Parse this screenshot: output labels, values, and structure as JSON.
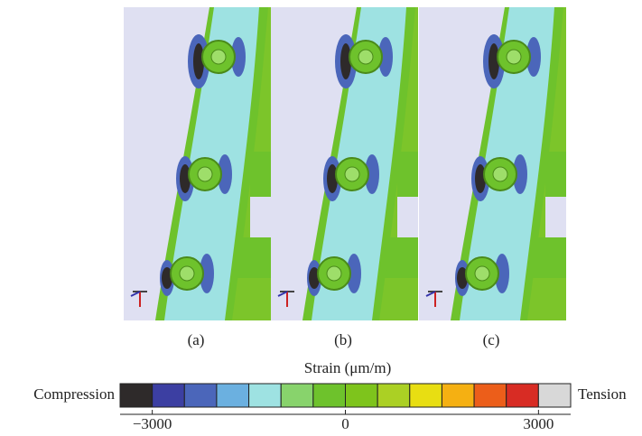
{
  "panels": [
    {
      "label": "(a)"
    },
    {
      "label": "(b)"
    },
    {
      "label": "(c)"
    }
  ],
  "colorbar": {
    "title": "Strain (μm/m)",
    "left_label": "Compression",
    "right_label": "Tension",
    "lim": [
      -3500,
      3500
    ],
    "colors": [
      "#2e2a2a",
      "#3c3fa2",
      "#4b66ba",
      "#6bb0e0",
      "#9ee2e2",
      "#88d36c",
      "#6ec22c",
      "#7ec41c",
      "#abd024",
      "#e8de12",
      "#f5b012",
      "#ec5e1a",
      "#d82c24",
      "#d8d8d8"
    ],
    "ticks": [
      {
        "value": -3000,
        "label": "−3000"
      },
      0,
      3000
    ]
  }
}
